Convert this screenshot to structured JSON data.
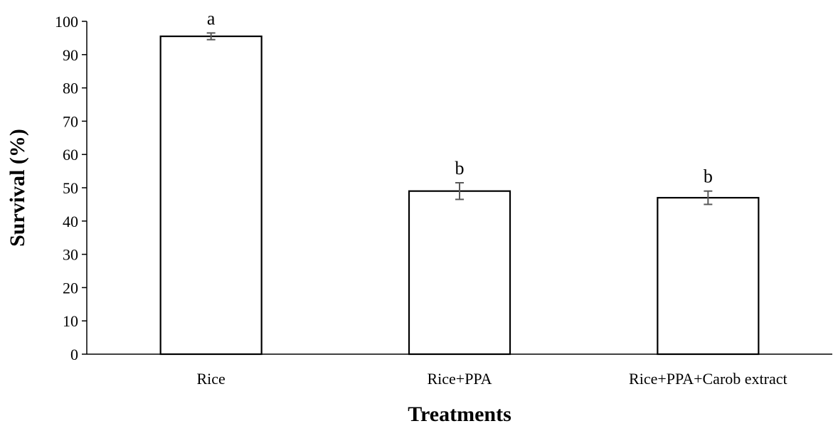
{
  "chart_data": {
    "type": "bar",
    "categories": [
      "Rice",
      "Rice+PPA",
      "Rice+PPA+Carob extract"
    ],
    "values": [
      95.5,
      49,
      47
    ],
    "errors": [
      1,
      2.5,
      2
    ],
    "significance_labels": [
      "a",
      "b",
      "b"
    ],
    "xlabel": "Treatments",
    "ylabel": "Survival (%)",
    "ylim": [
      0,
      100
    ],
    "yticks": [
      0,
      10,
      20,
      30,
      40,
      50,
      60,
      70,
      80,
      90,
      100
    ],
    "grid": false,
    "legend": "none",
    "colors": {
      "bar_fill": "#ffffff",
      "bar_stroke": "#000000",
      "error_bar": "#595959"
    }
  }
}
